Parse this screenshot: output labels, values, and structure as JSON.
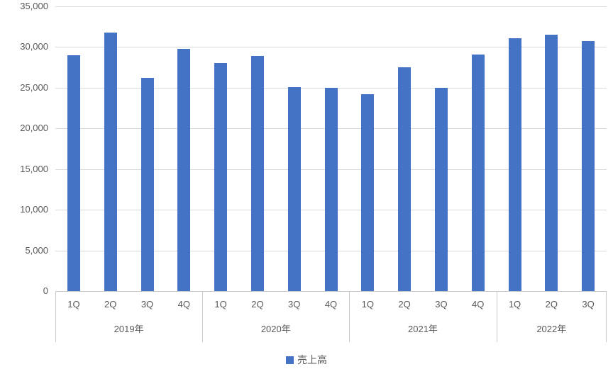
{
  "chart_data": {
    "type": "bar",
    "title": "",
    "xlabel": "",
    "ylabel": "",
    "ylim": [
      0,
      35000
    ],
    "ytick_step": 5000,
    "ytick_labels": [
      "0",
      "5,000",
      "10,000",
      "15,000",
      "20,000",
      "25,000",
      "30,000",
      "35,000"
    ],
    "grid": true,
    "legend_position": "bottom",
    "categories": [
      "1Q",
      "2Q",
      "3Q",
      "4Q",
      "1Q",
      "2Q",
      "3Q",
      "4Q",
      "1Q",
      "2Q",
      "3Q",
      "4Q",
      "1Q",
      "2Q",
      "3Q"
    ],
    "groups": [
      {
        "label": "2019年",
        "count": 4
      },
      {
        "label": "2020年",
        "count": 4
      },
      {
        "label": "2021年",
        "count": 4
      },
      {
        "label": "2022年",
        "count": 3
      }
    ],
    "series": [
      {
        "name": "売上高",
        "color": "#4472C4",
        "values": [
          29000,
          31800,
          26200,
          29800,
          28000,
          28900,
          25100,
          25000,
          24200,
          27500,
          25000,
          29100,
          31100,
          31500,
          30700
        ]
      }
    ]
  },
  "colors": {
    "bar": "#4472C4",
    "gridline": "#D9D9D9",
    "axis_line": "#C9C9C9",
    "text": "#595959",
    "background": "#FFFFFF"
  }
}
